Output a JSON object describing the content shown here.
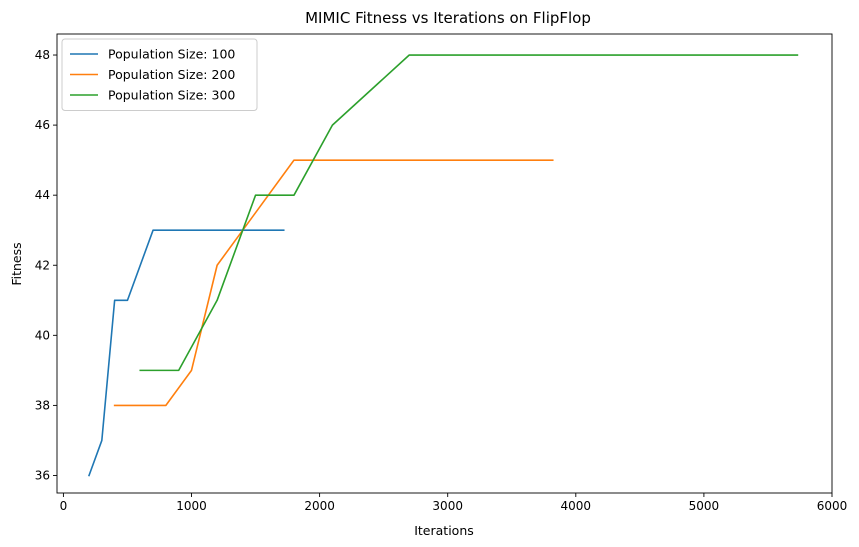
{
  "chart_data": {
    "type": "line",
    "title": "MIMIC Fitness vs Iterations on FlipFlop",
    "xlabel": "Iterations",
    "ylabel": "Fitness",
    "xlim": [
      -50,
      6000
    ],
    "ylim": [
      35.5,
      48.6
    ],
    "xticks": [
      0,
      1000,
      2000,
      3000,
      4000,
      5000,
      6000
    ],
    "yticks": [
      36,
      38,
      40,
      42,
      44,
      46,
      48
    ],
    "grid": false,
    "legend_position": "upper-left",
    "series": [
      {
        "name": "Population Size: 100",
        "color": "#1f77b4",
        "x": [
          200,
          300,
          400,
          500,
          700,
          1720
        ],
        "y": [
          36,
          37,
          41,
          41,
          43,
          43
        ]
      },
      {
        "name": "Population Size: 200",
        "color": "#ff7f0e",
        "x": [
          400,
          800,
          1000,
          1200,
          1800,
          3820
        ],
        "y": [
          38,
          38,
          39,
          42,
          45,
          45
        ]
      },
      {
        "name": "Population Size: 300",
        "color": "#2ca02c",
        "x": [
          600,
          900,
          1200,
          1500,
          1800,
          2100,
          2700,
          5730
        ],
        "y": [
          39,
          39,
          41,
          44,
          44,
          46,
          48,
          48
        ]
      }
    ]
  }
}
